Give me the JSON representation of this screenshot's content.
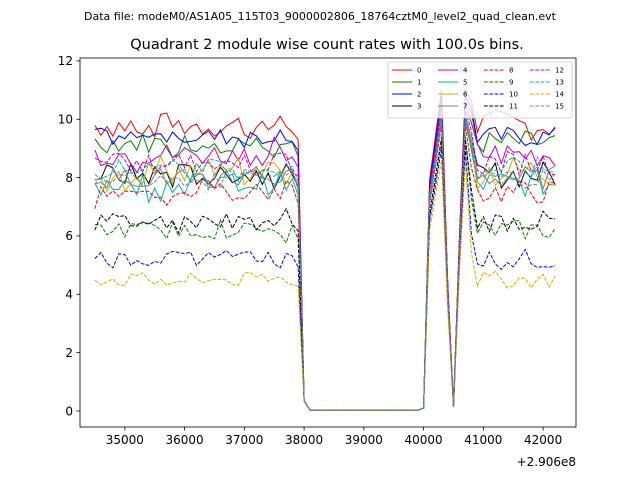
{
  "chart_data": {
    "type": "line",
    "suptitle": "Data file: modeM0/AS1A05_115T03_9000002806_18764cztM0_level2_quad_clean.evt",
    "title": "Quadrant 2 module wise count rates with 100.0s bins.",
    "xlabel": "",
    "ylabel": "",
    "x_offset_label": "+2.906e8",
    "xlim": [
      34250,
      42550
    ],
    "ylim": [
      -0.55,
      12.1
    ],
    "x_ticks": [
      35000,
      36000,
      37000,
      38000,
      39000,
      40000,
      41000,
      42000
    ],
    "y_ticks": [
      0,
      2,
      4,
      6,
      8,
      10,
      12
    ],
    "x_start": 34500,
    "x_step": 100,
    "gap_x": [
      38000,
      40000
    ],
    "grid": false,
    "legend_position": "top-right",
    "legend_columns": 4,
    "series": [
      {
        "name": "0",
        "color": "#ff0000",
        "dashed": false,
        "level": 9.8,
        "amp": 0.45,
        "peak": 11.0
      },
      {
        "name": "1",
        "color": "#008000",
        "dashed": false,
        "level": 9.2,
        "amp": 0.35,
        "peak": 10.6
      },
      {
        "name": "2",
        "color": "#0000ff",
        "dashed": false,
        "level": 9.4,
        "amp": 0.3,
        "peak": 10.8
      },
      {
        "name": "3",
        "color": "#000000",
        "dashed": false,
        "level": 8.1,
        "amp": 0.4,
        "peak": 10.0
      },
      {
        "name": "4",
        "color": "#c000c0",
        "dashed": false,
        "level": 8.8,
        "amp": 0.4,
        "peak": 10.5
      },
      {
        "name": "5",
        "color": "#00b0b0",
        "dashed": false,
        "level": 7.8,
        "amp": 0.4,
        "peak": 10.0
      },
      {
        "name": "6",
        "color": "#c8b400",
        "dashed": false,
        "level": 8.2,
        "amp": 0.5,
        "peak": 10.2
      },
      {
        "name": "7",
        "color": "#808080",
        "dashed": false,
        "level": 8.0,
        "amp": 0.35,
        "peak": 10.1
      },
      {
        "name": "8",
        "color": "#ff0000",
        "dashed": true,
        "level": 7.5,
        "amp": 0.35,
        "peak": 9.8
      },
      {
        "name": "9",
        "color": "#008000",
        "dashed": true,
        "level": 6.2,
        "amp": 0.3,
        "peak": 9.4
      },
      {
        "name": "10",
        "color": "#0000ff",
        "dashed": true,
        "level": 5.2,
        "amp": 0.3,
        "peak": 9.0
      },
      {
        "name": "11",
        "color": "#000000",
        "dashed": true,
        "level": 6.5,
        "amp": 0.3,
        "peak": 9.3
      },
      {
        "name": "12",
        "color": "#c000c0",
        "dashed": true,
        "level": 8.5,
        "amp": 0.35,
        "peak": 10.3
      },
      {
        "name": "13",
        "color": "#00b0b0",
        "dashed": true,
        "level": 8.3,
        "amp": 0.35,
        "peak": 10.1
      },
      {
        "name": "14",
        "color": "#c8b400",
        "dashed": true,
        "level": 4.5,
        "amp": 0.25,
        "peak": 8.6
      },
      {
        "name": "15",
        "color": "#808080",
        "dashed": true,
        "level": 8.0,
        "amp": 0.3,
        "peak": 9.9
      }
    ]
  }
}
